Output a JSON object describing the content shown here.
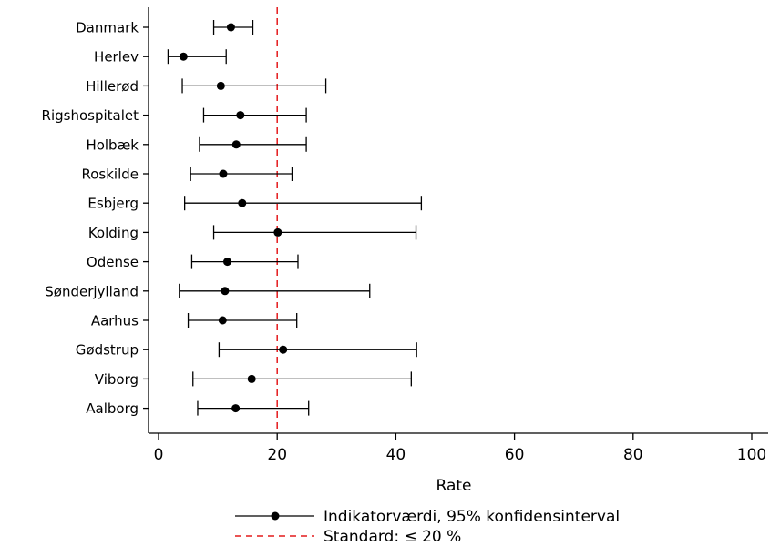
{
  "chart_data": {
    "type": "forest",
    "categories": [
      "Danmark",
      "Herlev",
      "Hillerød",
      "Rigshospitalet",
      "Holbæk",
      "Roskilde",
      "Esbjerg",
      "Kolding",
      "Odense",
      "Sønderjylland",
      "Aarhus",
      "Gødstrup",
      "Viborg",
      "Aalborg"
    ],
    "series": [
      {
        "name": "Indikatorværdi, 95% konfidensinterval",
        "values": [
          12.2,
          4.2,
          10.5,
          13.8,
          13.1,
          10.9,
          14.1,
          20.1,
          11.6,
          11.2,
          10.8,
          21.0,
          15.7,
          13.0
        ],
        "ci_low": [
          9.3,
          1.6,
          4.0,
          7.6,
          6.9,
          5.4,
          4.4,
          9.3,
          5.6,
          3.5,
          5.0,
          10.2,
          5.8,
          6.6
        ],
        "ci_high": [
          15.9,
          11.4,
          28.2,
          24.9,
          24.9,
          22.5,
          44.3,
          43.4,
          23.5,
          35.6,
          23.3,
          43.5,
          42.6,
          25.3
        ]
      }
    ],
    "reference_line": {
      "value": 20,
      "label": "Standard: ≤ 20 %",
      "color": "#e41a1c",
      "style": "dashed"
    },
    "xlabel": "Rate",
    "ylabel": "",
    "xlim": [
      0,
      100
    ],
    "xticks": [
      0,
      20,
      40,
      60,
      80,
      100
    ],
    "grid": false,
    "legend_position": "bottom-center"
  }
}
